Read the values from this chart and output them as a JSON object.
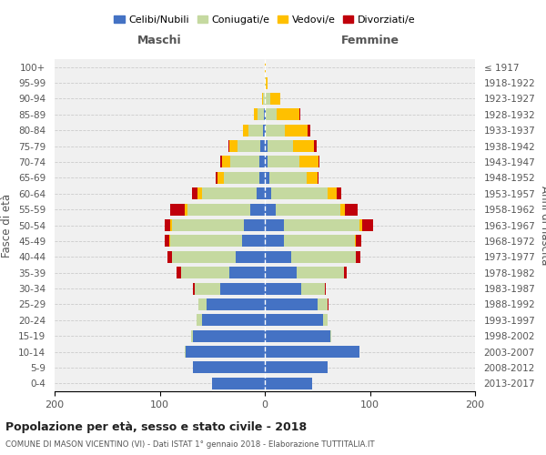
{
  "age_groups": [
    "0-4",
    "5-9",
    "10-14",
    "15-19",
    "20-24",
    "25-29",
    "30-34",
    "35-39",
    "40-44",
    "45-49",
    "50-54",
    "55-59",
    "60-64",
    "65-69",
    "70-74",
    "75-79",
    "80-84",
    "85-89",
    "90-94",
    "95-99",
    "100+"
  ],
  "birth_years": [
    "2013-2017",
    "2008-2012",
    "2003-2007",
    "1998-2002",
    "1993-1997",
    "1988-1992",
    "1983-1987",
    "1978-1982",
    "1973-1977",
    "1968-1972",
    "1963-1967",
    "1958-1962",
    "1953-1957",
    "1948-1952",
    "1943-1947",
    "1938-1942",
    "1933-1937",
    "1928-1932",
    "1923-1927",
    "1918-1922",
    "≤ 1917"
  ],
  "colors": {
    "celibi": "#4472c4",
    "coniugati": "#c5d9a0",
    "vedovi": "#ffc000",
    "divorziati": "#c0000b"
  },
  "males": {
    "celibi": [
      50,
      68,
      75,
      68,
      60,
      55,
      42,
      34,
      28,
      22,
      20,
      14,
      8,
      5,
      5,
      4,
      2,
      1,
      0,
      0,
      0
    ],
    "coniugati": [
      0,
      0,
      1,
      2,
      5,
      8,
      25,
      46,
      60,
      68,
      68,
      60,
      52,
      34,
      28,
      22,
      14,
      6,
      2,
      0,
      0
    ],
    "vedovi": [
      0,
      0,
      0,
      0,
      0,
      0,
      0,
      0,
      0,
      1,
      2,
      2,
      4,
      6,
      8,
      8,
      5,
      3,
      1,
      0,
      0
    ],
    "divorziati": [
      0,
      0,
      0,
      0,
      0,
      0,
      1,
      4,
      5,
      4,
      5,
      14,
      5,
      2,
      1,
      1,
      0,
      0,
      0,
      0,
      0
    ]
  },
  "females": {
    "celibi": [
      45,
      60,
      90,
      62,
      55,
      50,
      35,
      30,
      25,
      18,
      18,
      10,
      6,
      4,
      3,
      3,
      1,
      1,
      0,
      0,
      0
    ],
    "coniugati": [
      0,
      0,
      0,
      1,
      5,
      10,
      22,
      45,
      62,
      68,
      72,
      62,
      54,
      36,
      30,
      24,
      18,
      10,
      5,
      1,
      0
    ],
    "vedovi": [
      0,
      0,
      0,
      0,
      0,
      0,
      0,
      0,
      0,
      1,
      3,
      4,
      8,
      10,
      18,
      20,
      22,
      22,
      10,
      2,
      1
    ],
    "divorziati": [
      0,
      0,
      0,
      0,
      0,
      1,
      1,
      3,
      4,
      5,
      10,
      12,
      5,
      1,
      1,
      2,
      2,
      1,
      0,
      0,
      0
    ]
  },
  "xlim": [
    -200,
    200
  ],
  "xticks": [
    -200,
    -100,
    0,
    100,
    200
  ],
  "xticklabels": [
    "200",
    "100",
    "0",
    "100",
    "200"
  ],
  "title_main": "Popolazione per età, sesso e stato civile - 2018",
  "title_sub": "COMUNE DI MASON VICENTINO (VI) - Dati ISTAT 1° gennaio 2018 - Elaborazione TUTTITALIA.IT",
  "ylabel_left": "Fasce di età",
  "ylabel_right": "Anni di nascita",
  "label_maschi": "Maschi",
  "label_femmine": "Femmine",
  "legend_labels": [
    "Celibi/Nubili",
    "Coniugati/e",
    "Vedovi/e",
    "Divorziati/e"
  ],
  "bg_color": "#f0f0f0",
  "grid_color": "#cccccc"
}
